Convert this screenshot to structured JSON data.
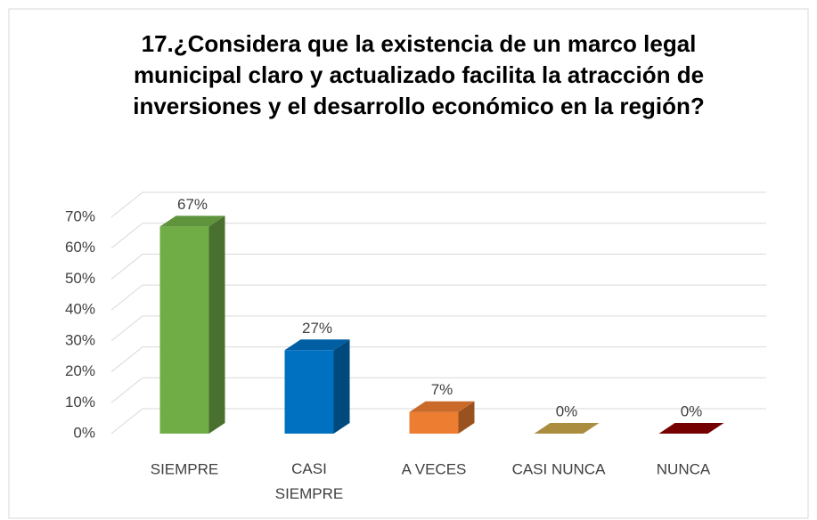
{
  "chart_data": {
    "type": "bar3d",
    "title": "17.¿Considera que la existencia de un marco legal municipal claro y  actualizado facilita la atracción de inversiones y el desarrollo económico en la región?",
    "categories": [
      "SIEMPRE",
      "CASI SIEMPRE",
      "A VECES",
      "CASI NUNCA",
      "NUNCA"
    ],
    "values": [
      67,
      27,
      7,
      0,
      0
    ],
    "value_labels": [
      "67%",
      "27%",
      "7%",
      "0%",
      "0%"
    ],
    "colors": [
      "#70ad47",
      "#0070c0",
      "#ed7d31",
      "#c9a64b",
      "#8b0000"
    ],
    "ylim": [
      0,
      70
    ],
    "yticks": [
      {
        "value": 0,
        "label": "0%"
      },
      {
        "value": 10,
        "label": "10%"
      },
      {
        "value": 20,
        "label": "20%"
      },
      {
        "value": 30,
        "label": "30%"
      },
      {
        "value": 40,
        "label": "40%"
      },
      {
        "value": 50,
        "label": "50%"
      },
      {
        "value": 60,
        "label": "60%"
      },
      {
        "value": 70,
        "label": "70%"
      }
    ],
    "grid": true
  }
}
